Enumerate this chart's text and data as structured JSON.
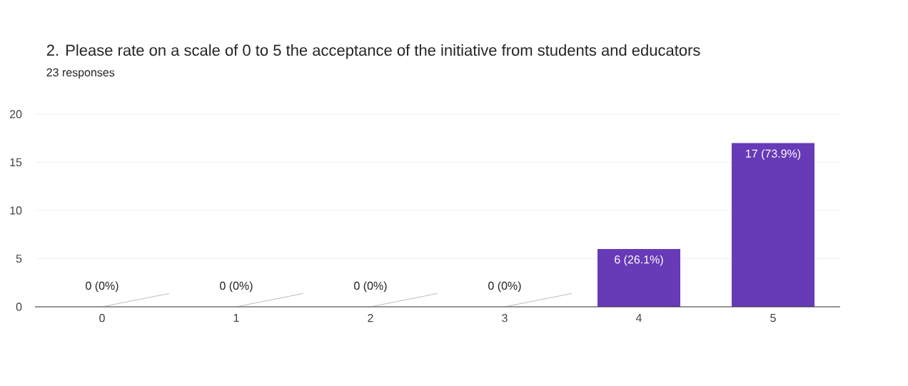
{
  "chart_data": {
    "type": "bar",
    "title": "2. Please rate on a scale of 0 to 5 the acceptance of the initiative from students and educators",
    "subtitle": "23 responses",
    "categories": [
      "0",
      "1",
      "2",
      "3",
      "4",
      "5"
    ],
    "values": [
      0,
      0,
      0,
      0,
      6,
      17
    ],
    "value_labels": [
      "0 (0%)",
      "0 (0%)",
      "0 (0%)",
      "0 (0%)",
      "6 (26.1%)",
      "17 (73.9%)"
    ],
    "color": "#673ab7",
    "ylim": [
      0,
      20
    ],
    "yticks": [
      0,
      5,
      10,
      15,
      20
    ],
    "grid": "y"
  }
}
